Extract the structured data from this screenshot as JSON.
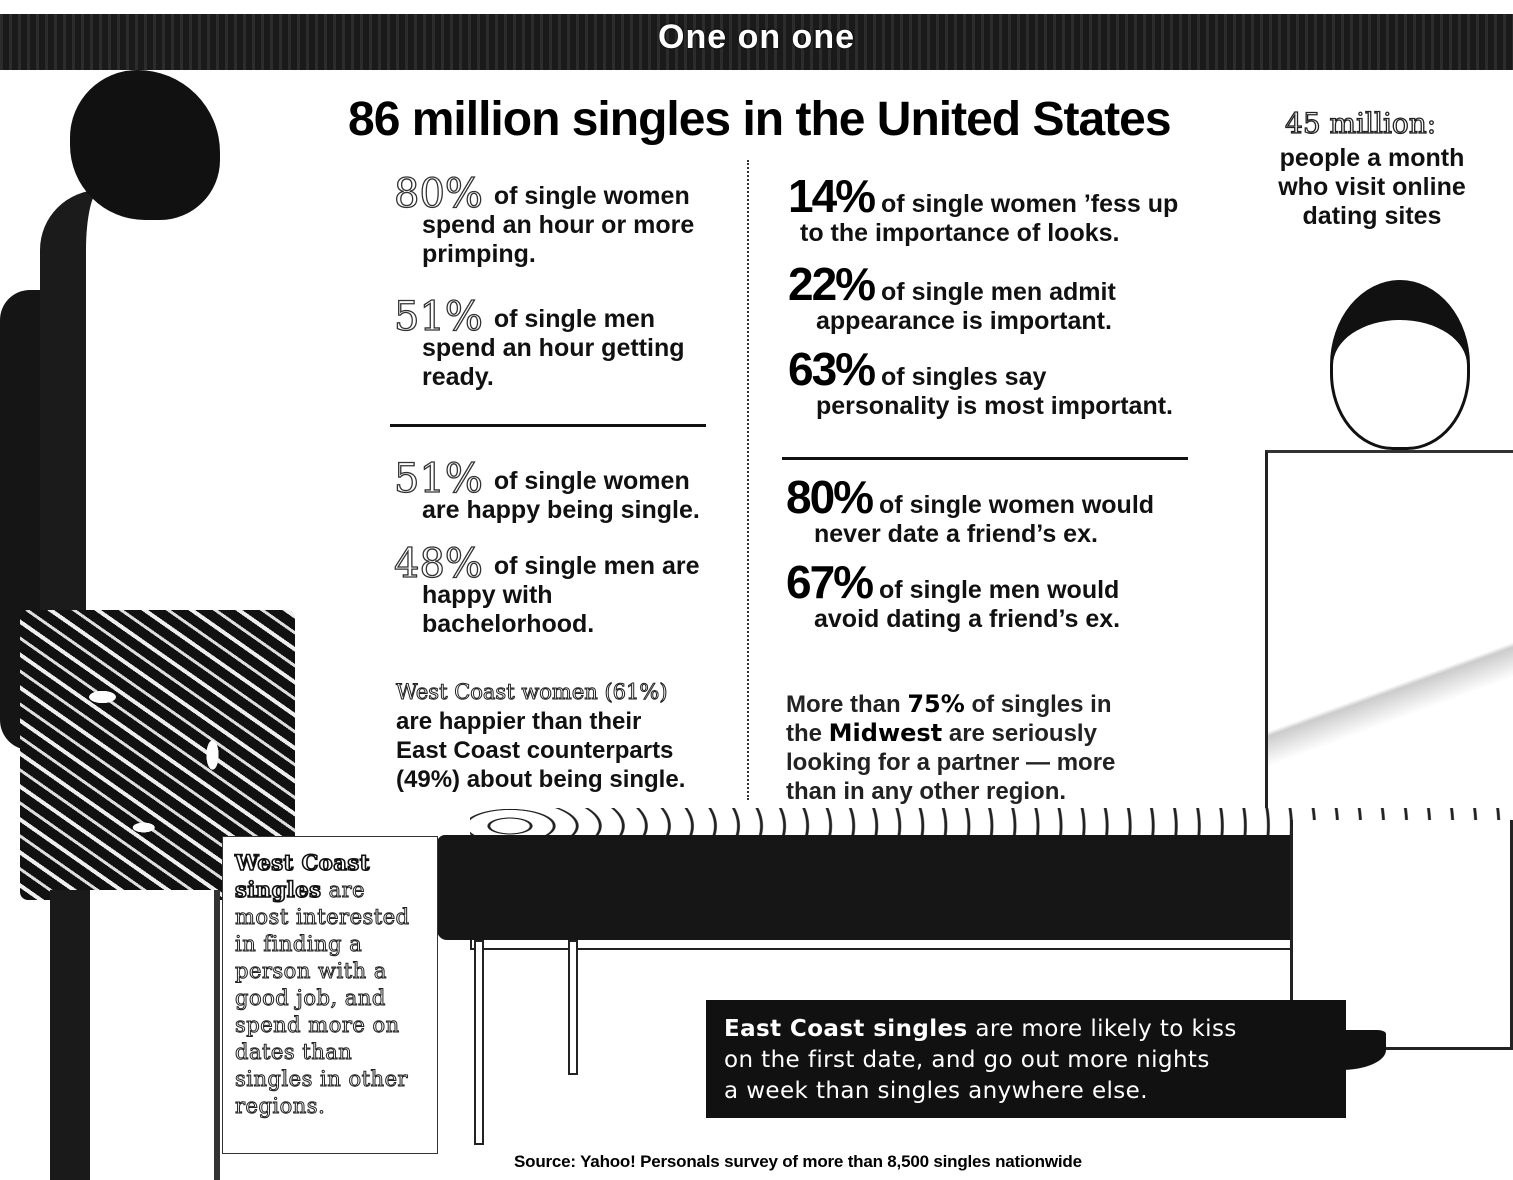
{
  "header": {
    "title": "One on one"
  },
  "main_title": "86 million singles in the United States",
  "left_col": {
    "stat1": {
      "num": "80%",
      "text1": "of single women",
      "text2": "spend an hour or more",
      "text3": "primping."
    },
    "stat2": {
      "num": "51%",
      "text1": "of single men",
      "text2": "spend an hour getting",
      "text3": "ready."
    },
    "stat3": {
      "num": "51%",
      "text1": "of single women",
      "text2": "are happy being single."
    },
    "stat4": {
      "num": "48%",
      "text1": "of single men are",
      "text2": "happy with",
      "text3": "bachelorhood."
    },
    "westcoast": {
      "line1": "West Coast women (61%)",
      "line2": "are happier than their",
      "line3": "East Coast counterparts",
      "line4": "(49%) about being single."
    }
  },
  "right_col": {
    "stat1": {
      "num": "14%",
      "text1": "of single women ’fess up",
      "text2": "to the importance of looks."
    },
    "stat2": {
      "num": "22%",
      "text1": "of single men admit",
      "text2": "appearance is important."
    },
    "stat3": {
      "num": "63%",
      "text1": "of singles say",
      "text2": "personality is most important."
    },
    "stat4": {
      "num": "80%",
      "text1": "of single women would",
      "text2": "never date a friend’s ex."
    },
    "stat5": {
      "num": "67%",
      "text1": "of single men would",
      "text2": "avoid dating a friend’s ex."
    },
    "midwest": {
      "pre": "More than ",
      "pct": "75%",
      "mid": " of singles in",
      "line2a": "the ",
      "region": "Midwest",
      "line2b": " are seriously",
      "line3": "looking for a partner — more",
      "line4": "than in any other region."
    }
  },
  "online": {
    "title": "45 million:",
    "text1": "people a month",
    "text2": "who visit online",
    "text3": "dating sites"
  },
  "west_box": {
    "strong1": "West Coast",
    "strong2": "singles",
    "rest1": " are",
    "l3": "most interested",
    "l4": "in finding a",
    "l5": "person with a",
    "l6": "good job, and",
    "l7": "spend more on",
    "l8": "dates than",
    "l9": "singles in other",
    "l10": "regions."
  },
  "east_box": {
    "strong": "East Coast singles",
    "rest1": " are more likely to kiss",
    "line2": "on the first date, and go out more nights",
    "line3": "a week than singles anywhere else."
  },
  "source": "Source: Yahoo! Personals survey of more than 8,500 singles nationwide"
}
